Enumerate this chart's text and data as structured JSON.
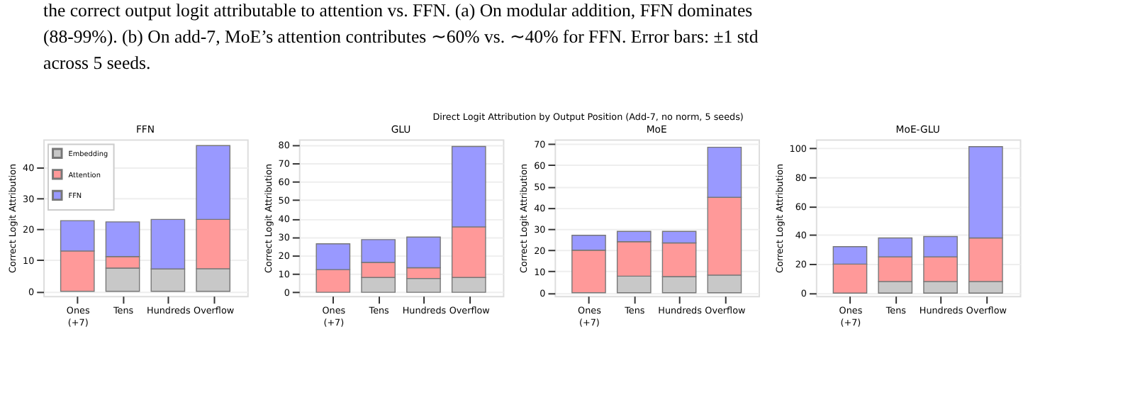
{
  "chart_data": [
    {
      "type": "other",
      "title": "Direct Logit Attribution by Output Position (Add-7, no norm, 5 seeds)",
      "annotations": [
        "the correct output logit attributable to attention vs. FFN. (a) On modular addition, FFN dominates",
        "(88-99%). (b) On add-7, MoE’s attention contributes ∼60% vs. ∼40% for FFN. Error bars: ±1 std",
        "across 5 seeds."
      ]
    },
    {
      "type": "bar",
      "title": "FFN",
      "ylabel": "Correct Logit Attribution",
      "stacked": true,
      "grid": "y",
      "legend": "top left",
      "categories": [
        "Ones\n(+7)",
        "Tens",
        "Hundreds",
        "Overflow"
      ],
      "ylim": [
        -1.5,
        49
      ],
      "yticks": [
        0,
        10,
        20,
        30,
        40
      ],
      "series": [
        {
          "name": "Embedding",
          "color": "#c8c8c8",
          "values": [
            0,
            7.5,
            7.2,
            7.3
          ]
        },
        {
          "name": "Attention",
          "color": "#ff9999",
          "values": [
            13,
            3.7,
            0,
            15.9
          ]
        },
        {
          "name": "FFN",
          "color": "#9999ff",
          "values": [
            9.8,
            11.2,
            16,
            23.8
          ]
        }
      ]
    },
    {
      "type": "bar",
      "title": "GLU",
      "ylabel": "Correct Logit Attribution",
      "stacked": true,
      "grid": "y",
      "legend": false,
      "categories": [
        "Ones\n(+7)",
        "Tens",
        "Hundreds",
        "Overflow"
      ],
      "ylim": [
        -2,
        83
      ],
      "yticks": [
        0,
        10,
        20,
        30,
        40,
        50,
        60,
        70,
        80
      ],
      "series": [
        {
          "color": "#c8c8c8",
          "values": [
            0,
            8,
            7.5,
            8
          ]
        },
        {
          "color": "#ff9999",
          "values": [
            12.3,
            8.2,
            5.8,
            27.5
          ]
        },
        {
          "color": "#9999ff",
          "values": [
            14,
            12.4,
            16.7,
            43.7
          ]
        }
      ]
    },
    {
      "type": "bar",
      "title": "MoE",
      "ylabel": "Correct Logit Attribution",
      "stacked": true,
      "grid": "y",
      "legend": false,
      "categories": [
        "Ones\n(+7)",
        "Tens",
        "Hundreds",
        "Overflow"
      ],
      "ylim": [
        -1.5,
        72
      ],
      "yticks": [
        0,
        10,
        20,
        30,
        40,
        50,
        60,
        70
      ],
      "series": [
        {
          "color": "#c8c8c8",
          "values": [
            0,
            7.8,
            7.6,
            8.3
          ]
        },
        {
          "color": "#ff9999",
          "values": [
            20,
            16.2,
            15.8,
            36.5
          ]
        },
        {
          "color": "#9999ff",
          "values": [
            7,
            4.8,
            5.4,
            23.5
          ]
        }
      ]
    },
    {
      "type": "bar",
      "title": "MoE-GLU",
      "ylabel": "Correct Logit Attribution",
      "stacked": true,
      "grid": "y",
      "legend": false,
      "categories": [
        "Ones\n(+7)",
        "Tens",
        "Hundreds",
        "Overflow"
      ],
      "ylim": [
        -2,
        106
      ],
      "yticks": [
        0,
        20,
        40,
        60,
        80,
        100
      ],
      "series": [
        {
          "color": "#c8c8c8",
          "values": [
            0,
            8,
            8,
            8
          ]
        },
        {
          "color": "#ff9999",
          "values": [
            20,
            17,
            17,
            30
          ]
        },
        {
          "color": "#9999ff",
          "values": [
            12,
            13,
            14,
            63
          ]
        }
      ]
    }
  ]
}
